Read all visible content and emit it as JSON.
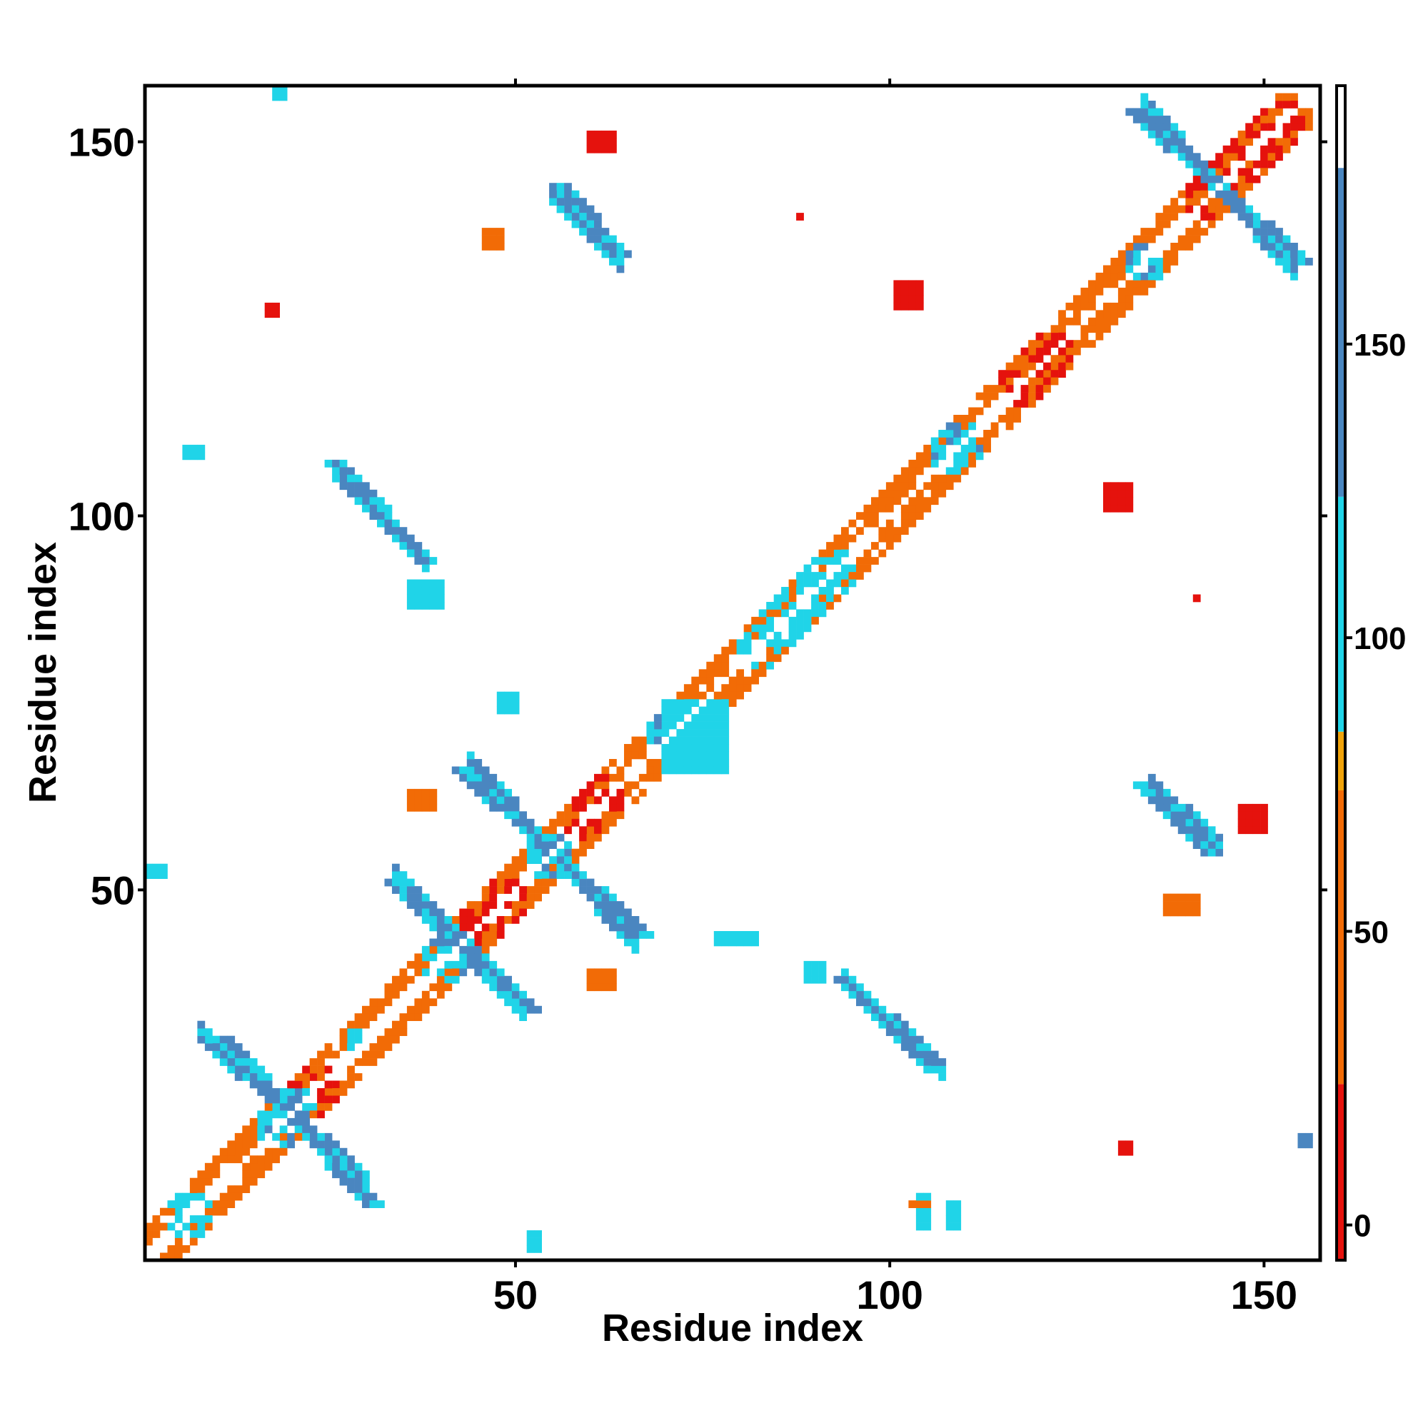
{
  "chart_data": {
    "type": "heatmap",
    "title": "",
    "xlabel": "Residue index",
    "ylabel": "Residue index",
    "xlim": [
      1,
      157
    ],
    "ylim": [
      1,
      157
    ],
    "x_ticks": [
      50,
      100,
      150
    ],
    "y_ticks": [
      50,
      100,
      150
    ],
    "grid": false,
    "colorbar": {
      "placement": "right",
      "range": [
        -6,
        194
      ],
      "ticks": [
        0,
        50,
        100,
        150
      ],
      "stops": [
        {
          "from": -6,
          "to": 24,
          "color": "#e5120d"
        },
        {
          "from": 24,
          "to": 74,
          "color": "#f26b06"
        },
        {
          "from": 74,
          "to": 84,
          "color": "#f0a30a"
        },
        {
          "from": 84,
          "to": 124,
          "color": "#20d4e8"
        },
        {
          "from": 124,
          "to": 180,
          "color": "#4a86c0"
        },
        {
          "from": 180,
          "to": 194,
          "color": "#ffffff"
        }
      ]
    },
    "categories_colors": {
      "red": "#e5120d",
      "orange": "#f26b06",
      "amber": "#f0a30a",
      "cyan": "#20d4e8",
      "steelblue": "#4a86c0"
    },
    "features": [
      {
        "kind": "diag",
        "from": 1,
        "to": 156,
        "value": 10
      },
      {
        "kind": "band",
        "from": 1,
        "to": 156,
        "offset": 2,
        "value": 45
      },
      {
        "kind": "band",
        "from": 1,
        "to": 156,
        "offset": 3,
        "value": 55
      },
      {
        "kind": "band",
        "from": 1,
        "to": 156,
        "offset": 4,
        "value": 35
      },
      {
        "kind": "block",
        "x": [
          4,
          9
        ],
        "y": [
          4,
          9
        ],
        "value": 100
      },
      {
        "kind": "block",
        "x": [
          13,
          19
        ],
        "y": [
          13,
          19
        ],
        "value": 45
      },
      {
        "kind": "block",
        "x": [
          20,
          26
        ],
        "y": [
          20,
          26
        ],
        "value": 5
      },
      {
        "kind": "block",
        "x": [
          43,
          51
        ],
        "y": [
          43,
          51
        ],
        "value": 10
      },
      {
        "kind": "block",
        "x": [
          57,
          65
        ],
        "y": [
          57,
          65
        ],
        "value": 10
      },
      {
        "kind": "block",
        "x": [
          67,
          80
        ],
        "y": [
          67,
          80
        ],
        "value": 45
      },
      {
        "kind": "block",
        "x": [
          80,
          95
        ],
        "y": [
          80,
          95
        ],
        "value": 100
      },
      {
        "kind": "block",
        "x": [
          98,
          110
        ],
        "y": [
          98,
          110
        ],
        "value": 45
      },
      {
        "kind": "block",
        "x": [
          115,
          124
        ],
        "y": [
          115,
          124
        ],
        "value": 10
      },
      {
        "kind": "block",
        "x": [
          125,
          136
        ],
        "y": [
          125,
          136
        ],
        "value": 45
      },
      {
        "kind": "block",
        "x": [
          140,
          155
        ],
        "y": [
          140,
          155
        ],
        "value": 10
      },
      {
        "kind": "block",
        "x": [
          86,
          92
        ],
        "y": [
          87,
          93
        ],
        "value": 100
      },
      {
        "kind": "block",
        "x": [
          106,
          112
        ],
        "y": [
          106,
          112
        ],
        "value": 110
      },
      {
        "kind": "block",
        "x": [
          68,
          75
        ],
        "y": [
          68,
          75
        ],
        "value": 110
      },
      {
        "kind": "block",
        "x": [
          52,
          57
        ],
        "y": [
          52,
          57
        ],
        "value": 110
      },
      {
        "kind": "block",
        "x": [
          38,
          44
        ],
        "y": [
          38,
          44
        ],
        "value": 110
      },
      {
        "kind": "block",
        "x": [
          16,
          23
        ],
        "y": [
          16,
          23
        ],
        "value": 110
      },
      {
        "kind": "block",
        "x": [
          132,
          136
        ],
        "y": [
          132,
          136
        ],
        "value": 110
      },
      {
        "kind": "anti",
        "x": [
          11,
          31
        ],
        "y": [
          30,
          8
        ],
        "value": 150
      },
      {
        "kind": "anti",
        "x": [
          34,
          52
        ],
        "y": [
          51,
          34
        ],
        "value": 150
      },
      {
        "kind": "anti",
        "x": [
          43,
          67
        ],
        "y": [
          66,
          44
        ],
        "value": 150
      },
      {
        "kind": "anti",
        "x": [
          26,
          38
        ],
        "y": [
          107,
          94
        ],
        "value": 150
      },
      {
        "kind": "anti",
        "x": [
          56,
          64
        ],
        "y": [
          144,
          135
        ],
        "value": 150
      },
      {
        "kind": "anti",
        "x": [
          94,
          106
        ],
        "y": [
          38,
          26
        ],
        "value": 150
      },
      {
        "kind": "anti",
        "x": [
          134,
          143
        ],
        "y": [
          64,
          55
        ],
        "value": 150
      },
      {
        "kind": "anti",
        "x": [
          133,
          155
        ],
        "y": [
          154,
          134
        ],
        "value": 150
      },
      {
        "kind": "blob",
        "x": [
          101,
          104
        ],
        "y": [
          128,
          131
        ],
        "value": 0
      },
      {
        "kind": "blob",
        "x": [
          129,
          132
        ],
        "y": [
          101,
          104
        ],
        "value": 0
      },
      {
        "kind": "blob",
        "x": [
          1,
          3
        ],
        "y": [
          52,
          53
        ],
        "value": 110
      },
      {
        "kind": "blob",
        "x": [
          52,
          53
        ],
        "y": [
          2,
          4
        ],
        "value": 110
      },
      {
        "kind": "blob",
        "x": [
          6,
          8
        ],
        "y": [
          108,
          109
        ],
        "value": 110
      },
      {
        "kind": "blob",
        "x": [
          28,
          29
        ],
        "y": [
          29,
          31
        ],
        "value": 110
      },
      {
        "kind": "blob",
        "x": [
          48,
          50
        ],
        "y": [
          74,
          76
        ],
        "value": 110
      },
      {
        "kind": "blob",
        "x": [
          36,
          40
        ],
        "y": [
          88,
          91
        ],
        "value": 110
      },
      {
        "kind": "blob",
        "x": [
          104,
          105
        ],
        "y": [
          5,
          9
        ],
        "value": 110
      },
      {
        "kind": "blob",
        "x": [
          108,
          109
        ],
        "y": [
          5,
          8
        ],
        "value": 110
      },
      {
        "kind": "blob",
        "x": [
          77,
          82
        ],
        "y": [
          43,
          44
        ],
        "value": 110
      },
      {
        "kind": "blob",
        "x": [
          89,
          91
        ],
        "y": [
          38,
          40
        ],
        "value": 110
      },
      {
        "kind": "blob",
        "x": [
          70,
          78
        ],
        "y": [
          66,
          75
        ],
        "value": 110
      },
      {
        "kind": "blob",
        "x": [
          17,
          18
        ],
        "y": [
          127,
          128
        ],
        "value": 20
      },
      {
        "kind": "blob",
        "x": [
          46,
          48
        ],
        "y": [
          136,
          138
        ],
        "value": 45
      },
      {
        "kind": "blob",
        "x": [
          60,
          63
        ],
        "y": [
          149,
          151
        ],
        "value": 10
      },
      {
        "kind": "blob",
        "x": [
          36,
          39
        ],
        "y": [
          61,
          63
        ],
        "value": 30
      },
      {
        "kind": "blob",
        "x": [
          60,
          63
        ],
        "y": [
          37,
          39
        ],
        "value": 30
      },
      {
        "kind": "blob",
        "x": [
          137,
          141
        ],
        "y": [
          47,
          49
        ],
        "value": 30
      },
      {
        "kind": "blob",
        "x": [
          147,
          150
        ],
        "y": [
          58,
          61
        ],
        "value": 10
      },
      {
        "kind": "blob",
        "x": [
          131,
          132
        ],
        "y": [
          15,
          16
        ],
        "value": 10
      },
      {
        "kind": "blob",
        "x": [
          103,
          105
        ],
        "y": [
          8,
          8
        ],
        "value": 45
      },
      {
        "kind": "blob",
        "x": [
          88,
          88
        ],
        "y": [
          140,
          140
        ],
        "value": 0
      },
      {
        "kind": "blob",
        "x": [
          141,
          141
        ],
        "y": [
          89,
          89
        ],
        "value": 0
      },
      {
        "kind": "blob",
        "x": [
          155,
          156
        ],
        "y": [
          16,
          17
        ],
        "value": 150
      },
      {
        "kind": "blob",
        "x": [
          18,
          19
        ],
        "y": [
          156,
          157
        ],
        "value": 110
      }
    ]
  }
}
